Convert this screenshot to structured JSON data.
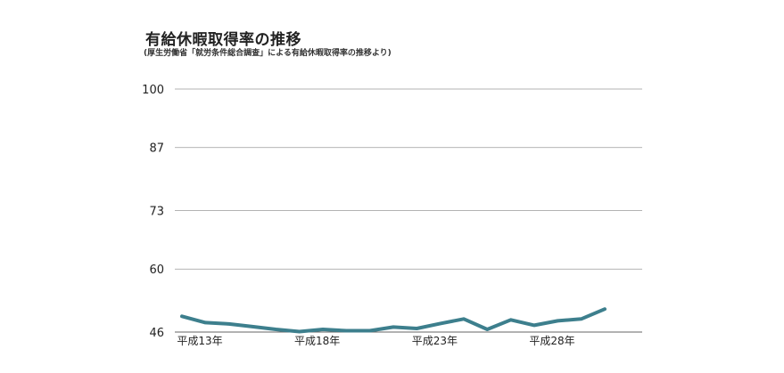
{
  "chart_data": {
    "type": "line",
    "title": "有給休暇取得率の推移",
    "subtitle": "(厚生労働省「就労条件総合調査」による有給休暇取得率の推移より)",
    "xlabel": "",
    "ylabel": "",
    "x_tick_labels": [
      "平成13年",
      "平成18年",
      "平成23年",
      "平成28年"
    ],
    "y_ticks": [
      46,
      60,
      73,
      87,
      100
    ],
    "ylim": [
      46,
      100
    ],
    "grid": true,
    "series": [
      {
        "color": "#3d7f8d",
        "values": [
          49.5,
          48.1,
          47.8,
          47.2,
          46.6,
          46.1,
          46.6,
          46.3,
          46.3,
          47.1,
          46.8,
          47.9,
          48.9,
          46.6,
          48.7,
          47.5,
          48.5,
          48.9,
          51.1
        ]
      }
    ]
  }
}
